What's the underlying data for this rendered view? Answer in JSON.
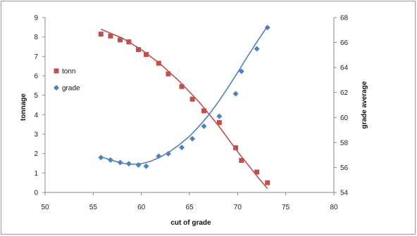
{
  "chart_data": {
    "type": "scatter",
    "title": "",
    "xlabel": "cut  of grade",
    "ylabel_left": "tonnage",
    "ylabel_right": "grade average",
    "xlim": [
      50,
      80
    ],
    "ylim_left": [
      0,
      9
    ],
    "ylim_right": [
      54,
      68
    ],
    "x_ticks": [
      50,
      55,
      60,
      65,
      70,
      75,
      80
    ],
    "y_left_ticks": [
      0,
      1,
      2,
      3,
      4,
      5,
      6,
      7,
      8,
      9
    ],
    "y_right_ticks": [
      54,
      56,
      58,
      60,
      62,
      64,
      66,
      68
    ],
    "grid": false,
    "legend_position": "left",
    "series": [
      {
        "name": "tonn",
        "axis": "left",
        "marker": "square",
        "color": "#c0504d",
        "points": [
          {
            "x": 55.8,
            "y": 8.15
          },
          {
            "x": 56.8,
            "y": 8.05
          },
          {
            "x": 57.8,
            "y": 7.85
          },
          {
            "x": 58.7,
            "y": 7.75
          },
          {
            "x": 59.7,
            "y": 7.35
          },
          {
            "x": 60.5,
            "y": 7.1
          },
          {
            "x": 61.8,
            "y": 6.65
          },
          {
            "x": 62.8,
            "y": 6.1
          },
          {
            "x": 64.2,
            "y": 5.45
          },
          {
            "x": 65.3,
            "y": 4.8
          },
          {
            "x": 66.5,
            "y": 4.2
          },
          {
            "x": 68.1,
            "y": 3.6
          },
          {
            "x": 69.8,
            "y": 2.3
          },
          {
            "x": 70.4,
            "y": 1.65
          },
          {
            "x": 72.0,
            "y": 1.05
          },
          {
            "x": 73.1,
            "y": 0.5
          }
        ],
        "trendline": [
          {
            "x": 55.8,
            "y": 8.4
          },
          {
            "x": 58,
            "y": 7.95
          },
          {
            "x": 60,
            "y": 7.35
          },
          {
            "x": 62,
            "y": 6.6
          },
          {
            "x": 64,
            "y": 5.7
          },
          {
            "x": 66,
            "y": 4.65
          },
          {
            "x": 68,
            "y": 3.45
          },
          {
            "x": 70,
            "y": 2.1
          },
          {
            "x": 72,
            "y": 0.85
          },
          {
            "x": 73.1,
            "y": 0.2
          }
        ]
      },
      {
        "name": "grade",
        "axis": "right",
        "marker": "diamond",
        "color": "#4f81bd",
        "points": [
          {
            "x": 55.8,
            "y": 56.8
          },
          {
            "x": 56.8,
            "y": 56.6
          },
          {
            "x": 57.8,
            "y": 56.4
          },
          {
            "x": 58.7,
            "y": 56.3
          },
          {
            "x": 59.7,
            "y": 56.2
          },
          {
            "x": 60.5,
            "y": 56.1
          },
          {
            "x": 61.8,
            "y": 56.9
          },
          {
            "x": 62.8,
            "y": 57.1
          },
          {
            "x": 64.2,
            "y": 57.6
          },
          {
            "x": 65.3,
            "y": 58.3
          },
          {
            "x": 66.5,
            "y": 59.3
          },
          {
            "x": 68.1,
            "y": 60.1
          },
          {
            "x": 69.8,
            "y": 61.9
          },
          {
            "x": 70.4,
            "y": 63.7
          },
          {
            "x": 72.0,
            "y": 65.5
          },
          {
            "x": 73.1,
            "y": 67.2
          }
        ],
        "trendline": [
          {
            "x": 55.8,
            "y": 56.85
          },
          {
            "x": 57,
            "y": 56.55
          },
          {
            "x": 58,
            "y": 56.35
          },
          {
            "x": 59,
            "y": 56.25
          },
          {
            "x": 60,
            "y": 56.3
          },
          {
            "x": 61,
            "y": 56.5
          },
          {
            "x": 62,
            "y": 56.85
          },
          {
            "x": 63,
            "y": 57.3
          },
          {
            "x": 64,
            "y": 57.85
          },
          {
            "x": 65,
            "y": 58.5
          },
          {
            "x": 66,
            "y": 59.3
          },
          {
            "x": 67,
            "y": 60.2
          },
          {
            "x": 68,
            "y": 61.25
          },
          {
            "x": 69,
            "y": 62.4
          },
          {
            "x": 70,
            "y": 63.6
          },
          {
            "x": 71,
            "y": 64.85
          },
          {
            "x": 72,
            "y": 66.05
          },
          {
            "x": 73.1,
            "y": 67.3
          }
        ]
      }
    ]
  }
}
